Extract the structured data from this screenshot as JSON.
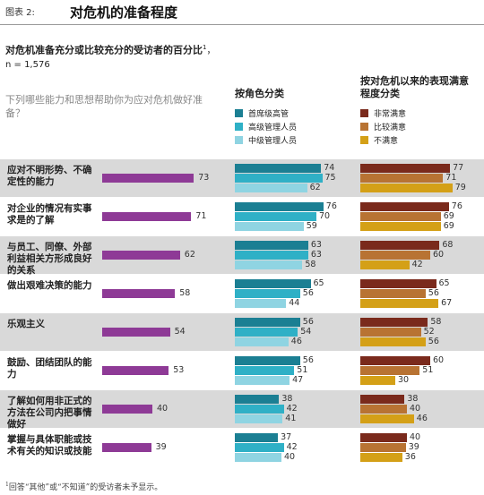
{
  "header": {
    "exhibit": "图表 2:",
    "title": "对危机的准备程度"
  },
  "subtitle": {
    "main": "对危机准备充分或比较充分的受访者的百分比",
    "sup": "1",
    "n": "，n = 1,576"
  },
  "question": "下列哪些能力和思想帮助你为应对危机做好准备？",
  "groups": {
    "role": {
      "heading": "按角色分类",
      "legend": [
        "首席级高管",
        "高级管理人员",
        "中级管理人员"
      ],
      "colors": [
        "#1b7f93",
        "#2fb0c6",
        "#8fd4e2"
      ]
    },
    "satisfaction": {
      "heading": "按对危机以来的表现满意程度分类",
      "legend": [
        "非常满意",
        "比较满意",
        "不满意"
      ],
      "colors": [
        "#7a2a1c",
        "#b87333",
        "#d4a017"
      ]
    },
    "overall_color": "#8e3a96"
  },
  "chart_data": {
    "type": "bar",
    "categories": [
      "应对不明形势、不确定性的能力",
      "对企业的情况有实事求是的了解",
      "与员工、同僚、外部利益相关方形成良好的关系",
      "做出艰难决策的能力",
      "乐观主义",
      "鼓励、团结团队的能力",
      "了解如何用非正式的方法在公司内把事情做好",
      "掌握与具体职能或技术有关的知识或技能"
    ],
    "overall": [
      73,
      71,
      62,
      58,
      54,
      53,
      40,
      39
    ],
    "by_role": [
      {
        "name": "首席级高管",
        "values": [
          74,
          76,
          63,
          65,
          56,
          56,
          38,
          37
        ]
      },
      {
        "name": "高级管理人员",
        "values": [
          75,
          70,
          63,
          56,
          54,
          51,
          42,
          42
        ]
      },
      {
        "name": "中级管理人员",
        "values": [
          62,
          59,
          58,
          44,
          46,
          47,
          41,
          40
        ]
      }
    ],
    "by_satisfaction": [
      {
        "name": "非常满意",
        "values": [
          77,
          76,
          68,
          65,
          58,
          60,
          38,
          40
        ]
      },
      {
        "name": "比较满意",
        "values": [
          71,
          69,
          60,
          56,
          52,
          51,
          40,
          39
        ]
      },
      {
        "name": "不满意",
        "values": [
          79,
          69,
          42,
          67,
          56,
          30,
          46,
          36
        ]
      }
    ],
    "ylim": [
      0,
      100
    ]
  },
  "footnote": {
    "sup": "1",
    "text": "回答“其他”或“不知道”的受访者未予显示。"
  }
}
